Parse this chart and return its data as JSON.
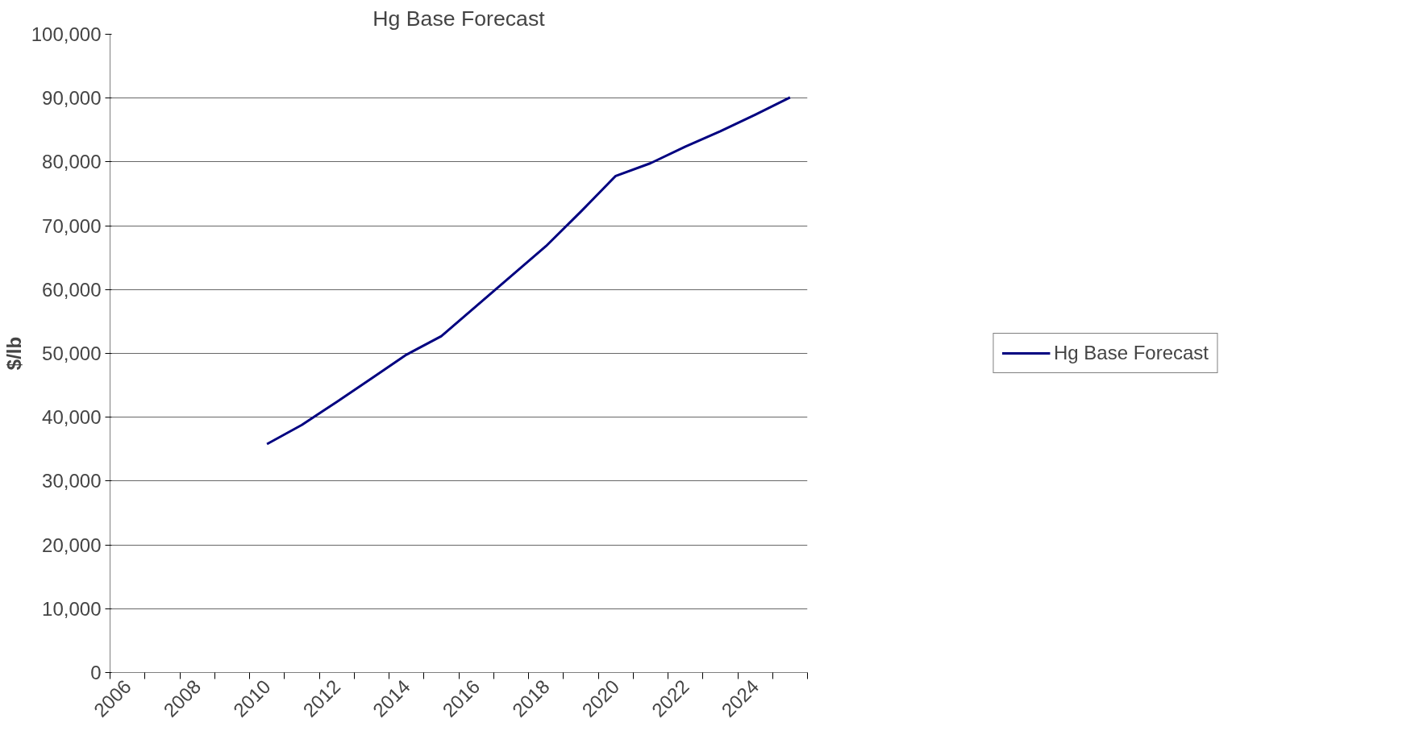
{
  "chart_data": {
    "type": "line",
    "title": "Hg Base Forecast",
    "ylabel": "$/lb",
    "categories": [
      "2006",
      null,
      "2008",
      null,
      "2010",
      null,
      "2012",
      null,
      "2014",
      null,
      "2016",
      null,
      "2018",
      null,
      "2020",
      null,
      "2022",
      null,
      "2024",
      null
    ],
    "series": [
      {
        "name": "Hg Base Forecast",
        "color": "#000080",
        "values": [
          null,
          null,
          null,
          null,
          35800,
          38800,
          42400,
          46100,
          49800,
          52700,
          57400,
          62100,
          66800,
          72200,
          77800,
          79800,
          82400,
          84800,
          87400,
          90100
        ]
      }
    ],
    "ylim": [
      0,
      100000
    ],
    "yticks": [
      {
        "value": 0,
        "label": "0"
      },
      {
        "value": 10000,
        "label": "10,000"
      },
      {
        "value": 20000,
        "label": "20,000"
      },
      {
        "value": 30000,
        "label": "30,000"
      },
      {
        "value": 40000,
        "label": "40,000"
      },
      {
        "value": 50000,
        "label": "50,000"
      },
      {
        "value": 60000,
        "label": "60,000"
      },
      {
        "value": 70000,
        "label": "70,000"
      },
      {
        "value": 80000,
        "label": "80,000"
      },
      {
        "value": 90000,
        "label": "90,000"
      },
      {
        "value": 100000,
        "label": "100,000"
      }
    ],
    "grid": "y",
    "legend": "right",
    "marker": "none",
    "line_style": "solid"
  }
}
